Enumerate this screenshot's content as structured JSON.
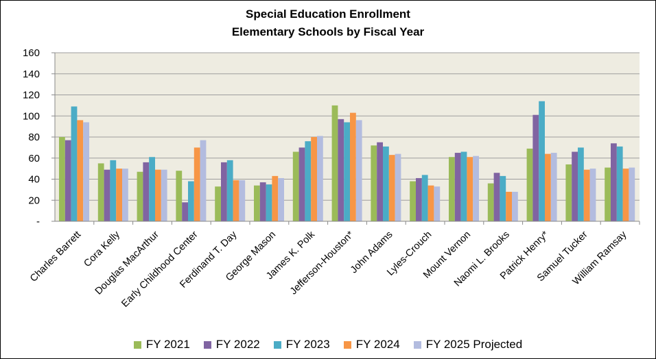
{
  "chart_data": {
    "type": "bar",
    "title": "Special Education Enrollment",
    "subtitle": "Elementary Schools by Fiscal Year",
    "xlabel": "",
    "ylabel": "",
    "ylim": [
      0,
      160
    ],
    "yticks": [
      0,
      20,
      40,
      60,
      80,
      100,
      120,
      140,
      160
    ],
    "ytick_labels": [
      "-",
      "20",
      "40",
      "60",
      "80",
      "100",
      "120",
      "140",
      "160"
    ],
    "grid": true,
    "legend_position": "bottom",
    "categories": [
      "Charles Barrett",
      "Cora Kelly",
      "Douglas MacArthur",
      "Early Childhood Center",
      "Ferdinand T. Day",
      "George Mason",
      "James K. Polk",
      "Jefferson-Houston*",
      "John Adams",
      "Lyles-Crouch",
      "Mount Vernon",
      "Naomi L. Brooks",
      "Patrick Henry*",
      "Samuel Tucker",
      "William Ramsay"
    ],
    "series": [
      {
        "name": "FY 2021",
        "color": "#9bbb59",
        "values": [
          80,
          55,
          47,
          48,
          33,
          34,
          66,
          110,
          72,
          38,
          61,
          36,
          69,
          54,
          51
        ]
      },
      {
        "name": "FY 2022",
        "color": "#8064a2",
        "values": [
          77,
          49,
          56,
          18,
          56,
          37,
          70,
          97,
          75,
          41,
          65,
          46,
          101,
          66,
          74
        ]
      },
      {
        "name": "FY 2023",
        "color": "#4bacc6",
        "values": [
          109,
          58,
          61,
          38,
          58,
          35,
          76,
          94,
          71,
          44,
          66,
          43,
          114,
          70,
          71
        ]
      },
      {
        "name": "FY 2024",
        "color": "#f79646",
        "values": [
          96,
          50,
          49,
          70,
          39,
          43,
          80,
          103,
          63,
          34,
          61,
          28,
          64,
          49,
          50
        ]
      },
      {
        "name": "FY 2025 Projected",
        "color": "#b3bcdf",
        "values": [
          94,
          50,
          49,
          77,
          39,
          41,
          81,
          96,
          64,
          33,
          62,
          28,
          65,
          50,
          51
        ]
      }
    ]
  },
  "colors": {
    "plot_background": "#eeece1",
    "gridline": "#9d9d9d"
  }
}
